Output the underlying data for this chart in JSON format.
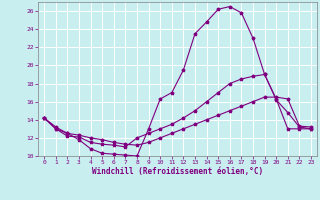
{
  "background_color": "#c8eef0",
  "grid_color": "#ffffff",
  "line_color": "#800080",
  "marker": "*",
  "xlabel": "Windchill (Refroidissement éolien,°C)",
  "xlim": [
    -0.5,
    23.5
  ],
  "ylim": [
    10,
    27
  ],
  "yticks": [
    10,
    12,
    14,
    16,
    18,
    20,
    22,
    24,
    26
  ],
  "xticks": [
    0,
    1,
    2,
    3,
    4,
    5,
    6,
    7,
    8,
    9,
    10,
    11,
    12,
    13,
    14,
    15,
    16,
    17,
    18,
    19,
    20,
    21,
    22,
    23
  ],
  "series": [
    {
      "x": [
        0,
        1,
        2,
        3,
        4,
        5,
        6,
        7,
        8,
        9,
        10,
        11,
        12,
        13,
        14,
        15,
        16,
        17,
        18,
        19,
        20,
        21,
        22,
        23
      ],
      "y": [
        14.2,
        13.0,
        12.5,
        11.8,
        10.8,
        10.3,
        10.2,
        10.1,
        10.0,
        13.0,
        16.3,
        17.0,
        19.5,
        23.5,
        24.8,
        26.2,
        26.5,
        25.8,
        23.0,
        19.0,
        16.2,
        14.8,
        13.2,
        13.0
      ]
    },
    {
      "x": [
        0,
        1,
        2,
        3,
        4,
        5,
        6,
        7,
        8,
        9,
        10,
        11,
        12,
        13,
        14,
        15,
        16,
        17,
        18,
        19,
        20,
        21,
        22,
        23
      ],
      "y": [
        14.2,
        13.0,
        12.2,
        12.1,
        11.5,
        11.3,
        11.2,
        11.0,
        12.0,
        12.5,
        13.0,
        13.5,
        14.2,
        15.0,
        16.0,
        17.0,
        18.0,
        18.5,
        18.8,
        19.0,
        16.3,
        13.0,
        13.0,
        13.0
      ]
    },
    {
      "x": [
        0,
        1,
        2,
        3,
        4,
        5,
        6,
        7,
        8,
        9,
        10,
        11,
        12,
        13,
        14,
        15,
        16,
        17,
        18,
        19,
        20,
        21,
        22,
        23
      ],
      "y": [
        14.2,
        13.2,
        12.5,
        12.3,
        12.0,
        11.8,
        11.5,
        11.3,
        11.2,
        11.5,
        12.0,
        12.5,
        13.0,
        13.5,
        14.0,
        14.5,
        15.0,
        15.5,
        16.0,
        16.5,
        16.5,
        16.3,
        13.3,
        13.2
      ]
    }
  ]
}
